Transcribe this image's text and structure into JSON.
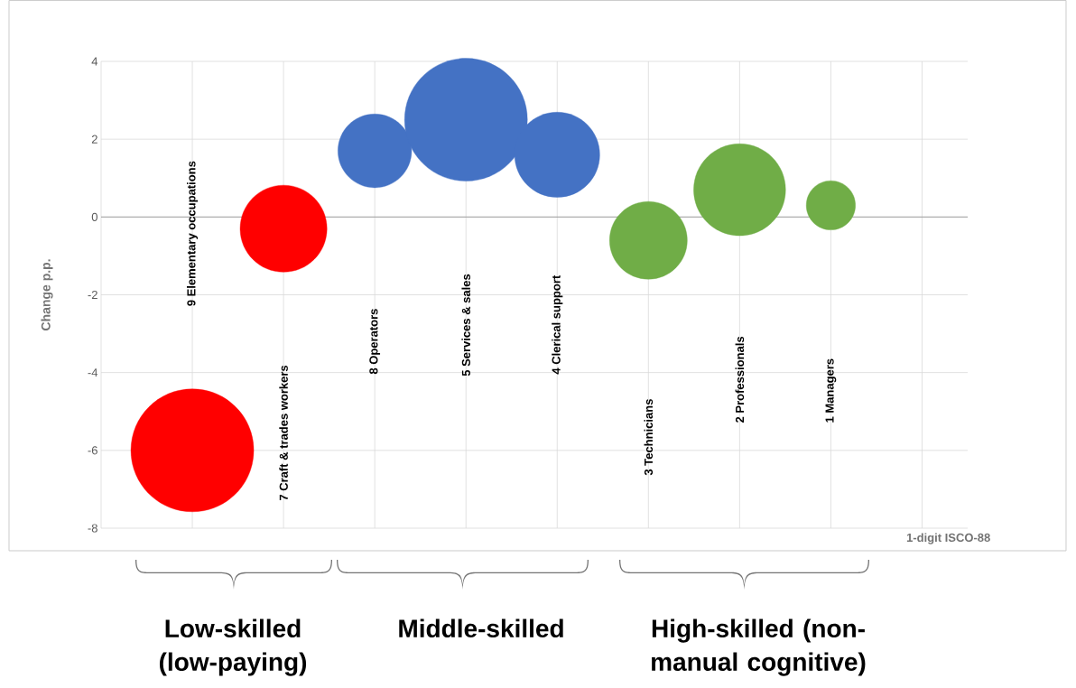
{
  "chart_data": {
    "type": "bubble",
    "xlabel": "1-digit ISCO-88",
    "ylabel": "Change  p.p.",
    "categories": [
      "9 Elementary occupations",
      "7 Craft & trades workers",
      "8 Operators",
      "5 Services &  sales",
      "4 Clerical support",
      "3 Technicians",
      "2 Professionals",
      "1 Managers"
    ],
    "values": [
      -6,
      -0.3,
      1.7,
      2.5,
      1.6,
      -0.6,
      0.7,
      0.3
    ],
    "sizes": [
      1,
      0.5,
      0.36,
      1,
      0.48,
      0.4,
      0.56,
      0.16
    ],
    "colors": [
      "#ff0000",
      "#ff0000",
      "#4472c4",
      "#4472c4",
      "#4472c4",
      "#70ad47",
      "#70ad47",
      "#70ad47"
    ],
    "ylim": [
      -8,
      4
    ],
    "yticks": [
      -8,
      -6,
      -4,
      -2,
      0,
      2,
      4
    ],
    "grid": true,
    "annotations": [
      "Low-skilled (low-paying)",
      "Middle-skilled",
      "High-skilled (non-manual cognitive)"
    ]
  }
}
